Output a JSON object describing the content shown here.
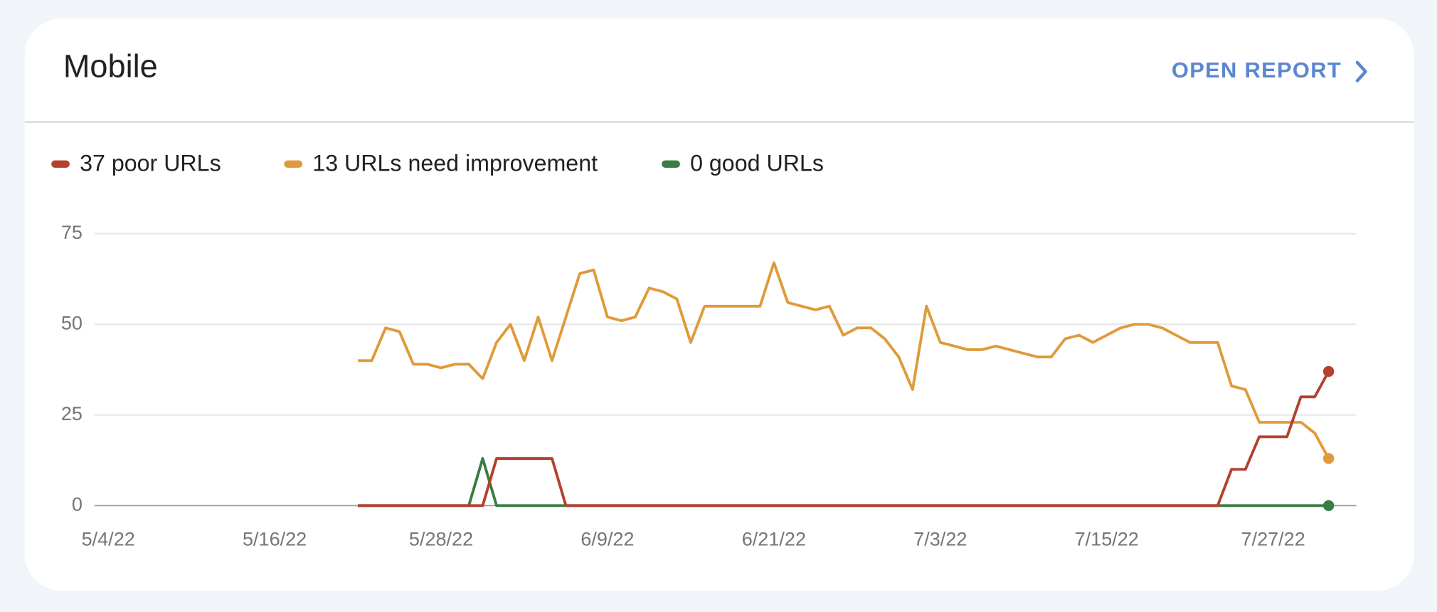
{
  "header": {
    "title": "Mobile",
    "link": "OPEN REPORT"
  },
  "chart_data": {
    "type": "line",
    "x": [
      "5/22/22",
      "5/23/22",
      "5/24/22",
      "5/25/22",
      "5/26/22",
      "5/27/22",
      "5/28/22",
      "5/29/22",
      "5/30/22",
      "5/31/22",
      "6/1/22",
      "6/2/22",
      "6/3/22",
      "6/4/22",
      "6/5/22",
      "6/6/22",
      "6/7/22",
      "6/8/22",
      "6/9/22",
      "6/10/22",
      "6/11/22",
      "6/12/22",
      "6/13/22",
      "6/14/22",
      "6/15/22",
      "6/16/22",
      "6/17/22",
      "6/18/22",
      "6/19/22",
      "6/20/22",
      "6/21/22",
      "6/22/22",
      "6/23/22",
      "6/24/22",
      "6/25/22",
      "6/26/22",
      "6/27/22",
      "6/28/22",
      "6/29/22",
      "6/30/22",
      "7/1/22",
      "7/2/22",
      "7/3/22",
      "7/4/22",
      "7/5/22",
      "7/6/22",
      "7/7/22",
      "7/8/22",
      "7/9/22",
      "7/10/22",
      "7/11/22",
      "7/12/22",
      "7/13/22",
      "7/14/22",
      "7/15/22",
      "7/16/22",
      "7/17/22",
      "7/18/22",
      "7/19/22",
      "7/20/22",
      "7/21/22",
      "7/22/22",
      "7/23/22",
      "7/24/22",
      "7/25/22",
      "7/26/22",
      "7/27/22",
      "7/28/22",
      "7/29/22",
      "7/30/22",
      "7/31/22"
    ],
    "series": [
      {
        "name": "37 poor URLs",
        "color": "#b3412e",
        "values": [
          0,
          0,
          0,
          0,
          0,
          0,
          0,
          0,
          0,
          0,
          13,
          13,
          13,
          13,
          13,
          0,
          0,
          0,
          0,
          0,
          0,
          0,
          0,
          0,
          0,
          0,
          0,
          0,
          0,
          0,
          0,
          0,
          0,
          0,
          0,
          0,
          0,
          0,
          0,
          0,
          0,
          0,
          0,
          0,
          0,
          0,
          0,
          0,
          0,
          0,
          0,
          0,
          0,
          0,
          0,
          0,
          0,
          0,
          0,
          0,
          0,
          0,
          0,
          10,
          10,
          19,
          19,
          19,
          30,
          30,
          37
        ]
      },
      {
        "name": "13 URLs need improvement",
        "color": "#e09a3a",
        "values": [
          40,
          40,
          49,
          48,
          39,
          39,
          38,
          39,
          39,
          35,
          45,
          50,
          40,
          52,
          40,
          52,
          64,
          65,
          52,
          51,
          52,
          60,
          59,
          57,
          45,
          55,
          55,
          55,
          55,
          55,
          67,
          56,
          55,
          54,
          55,
          47,
          49,
          49,
          46,
          41,
          32,
          55,
          45,
          44,
          43,
          43,
          44,
          43,
          42,
          41,
          41,
          46,
          47,
          45,
          47,
          49,
          50,
          50,
          49,
          47,
          45,
          45,
          45,
          33,
          32,
          23,
          23,
          23,
          23,
          20,
          13
        ]
      },
      {
        "name": "0 good URLs",
        "color": "#3a7d44",
        "values": [
          0,
          0,
          0,
          0,
          0,
          0,
          0,
          0,
          0,
          13,
          0,
          0,
          0,
          0,
          0,
          0,
          0,
          0,
          0,
          0,
          0,
          0,
          0,
          0,
          0,
          0,
          0,
          0,
          0,
          0,
          0,
          0,
          0,
          0,
          0,
          0,
          0,
          0,
          0,
          0,
          0,
          0,
          0,
          0,
          0,
          0,
          0,
          0,
          0,
          0,
          0,
          0,
          0,
          0,
          0,
          0,
          0,
          0,
          0,
          0,
          0,
          0,
          0,
          0,
          0,
          0,
          0,
          0,
          0,
          0,
          0
        ]
      }
    ],
    "xlim": [
      "5/3/22",
      "8/2/22"
    ],
    "xticks": [
      "5/4/22",
      "5/16/22",
      "5/28/22",
      "6/9/22",
      "6/21/22",
      "7/3/22",
      "7/15/22",
      "7/27/22"
    ],
    "ylim": [
      0,
      75
    ],
    "yticks": [
      0,
      25,
      50,
      75
    ],
    "grid": true
  }
}
